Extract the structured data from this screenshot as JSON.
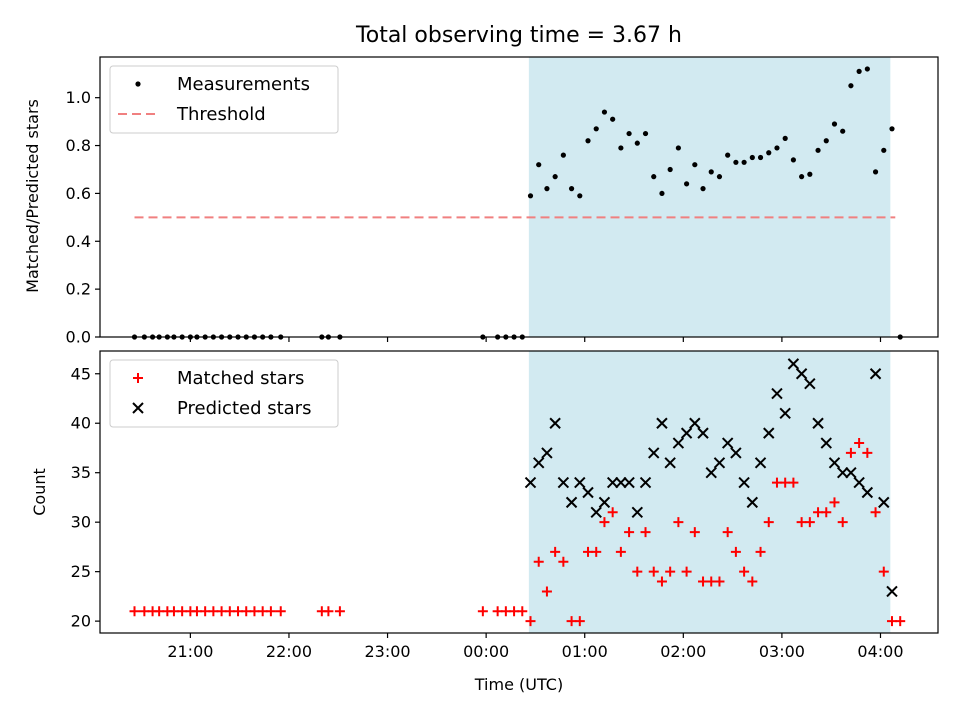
{
  "chart_data": [
    {
      "type": "scatter",
      "title": "Total observing time = 3.67 h",
      "xlabel": "",
      "ylabel": "Matched/Predicted stars",
      "xlim": [
        "20:05",
        "04:35"
      ],
      "ylim": [
        0,
        1.17
      ],
      "yticks": [
        "0.0",
        "0.2",
        "0.4",
        "0.6",
        "0.8",
        "1.0"
      ],
      "shaded_interval": [
        "00:26",
        "04:06"
      ],
      "shade_color": "#add8e6",
      "legend_position": "upper left",
      "series": [
        {
          "name": "Measurements",
          "marker": "dot",
          "color": "#000000",
          "points": [
            [
              "20:26",
              0
            ],
            [
              "20:32",
              0
            ],
            [
              "20:37",
              0
            ],
            [
              "20:41",
              0
            ],
            [
              "20:46",
              0
            ],
            [
              "20:50",
              0
            ],
            [
              "20:55",
              0
            ],
            [
              "21:00",
              0
            ],
            [
              "21:04",
              0
            ],
            [
              "21:09",
              0
            ],
            [
              "21:14",
              0
            ],
            [
              "21:19",
              0
            ],
            [
              "21:24",
              0
            ],
            [
              "21:29",
              0
            ],
            [
              "21:34",
              0
            ],
            [
              "21:39",
              0
            ],
            [
              "21:44",
              0
            ],
            [
              "21:49",
              0
            ],
            [
              "21:55",
              0
            ],
            [
              "22:20",
              0
            ],
            [
              "22:24",
              0
            ],
            [
              "22:31",
              0
            ],
            [
              "23:58",
              0
            ],
            [
              "00:07",
              0
            ],
            [
              "00:12",
              0
            ],
            [
              "00:17",
              0
            ],
            [
              "00:22",
              0
            ],
            [
              "00:27",
              0.59
            ],
            [
              "00:32",
              0.72
            ],
            [
              "00:37",
              0.62
            ],
            [
              "00:42",
              0.67
            ],
            [
              "00:47",
              0.76
            ],
            [
              "00:52",
              0.62
            ],
            [
              "00:57",
              0.59
            ],
            [
              "01:02",
              0.82
            ],
            [
              "01:07",
              0.87
            ],
            [
              "01:12",
              0.94
            ],
            [
              "01:17",
              0.91
            ],
            [
              "01:22",
              0.79
            ],
            [
              "01:27",
              0.85
            ],
            [
              "01:32",
              0.81
            ],
            [
              "01:37",
              0.85
            ],
            [
              "01:42",
              0.67
            ],
            [
              "01:47",
              0.6
            ],
            [
              "01:52",
              0.7
            ],
            [
              "01:57",
              0.79
            ],
            [
              "02:02",
              0.64
            ],
            [
              "02:07",
              0.72
            ],
            [
              "02:12",
              0.62
            ],
            [
              "02:17",
              0.69
            ],
            [
              "02:22",
              0.67
            ],
            [
              "02:27",
              0.76
            ],
            [
              "02:32",
              0.73
            ],
            [
              "02:37",
              0.73
            ],
            [
              "02:42",
              0.75
            ],
            [
              "02:47",
              0.75
            ],
            [
              "02:52",
              0.77
            ],
            [
              "02:57",
              0.79
            ],
            [
              "03:02",
              0.83
            ],
            [
              "03:07",
              0.74
            ],
            [
              "03:12",
              0.67
            ],
            [
              "03:17",
              0.68
            ],
            [
              "03:22",
              0.78
            ],
            [
              "03:27",
              0.82
            ],
            [
              "03:32",
              0.89
            ],
            [
              "03:37",
              0.86
            ],
            [
              "03:42",
              1.05
            ],
            [
              "03:47",
              1.11
            ],
            [
              "03:52",
              1.12
            ],
            [
              "03:57",
              0.69
            ],
            [
              "04:02",
              0.78
            ],
            [
              "04:07",
              0.87
            ],
            [
              "04:12",
              0
            ]
          ]
        },
        {
          "name": "Threshold",
          "type": "line",
          "style": "dashed",
          "color": "#f08080",
          "points": [
            [
              "20:26",
              0.5
            ],
            [
              "04:09",
              0.5
            ]
          ]
        }
      ]
    },
    {
      "type": "scatter",
      "title": "",
      "xlabel": "Time (UTC)",
      "ylabel": "Count",
      "xlim": [
        "20:05",
        "04:35"
      ],
      "ylim": [
        18.8,
        47.3
      ],
      "yticks": [
        "20",
        "25",
        "30",
        "35",
        "40",
        "45"
      ],
      "xticks": [
        "21:00",
        "22:00",
        "23:00",
        "00:00",
        "01:00",
        "02:00",
        "03:00",
        "04:00"
      ],
      "shaded_interval": [
        "00:26",
        "04:06"
      ],
      "shade_color": "#add8e6",
      "legend_position": "upper left",
      "series": [
        {
          "name": "Matched stars",
          "marker": "plus",
          "color": "#ff0000",
          "points": [
            [
              "20:26",
              21
            ],
            [
              "20:32",
              21
            ],
            [
              "20:37",
              21
            ],
            [
              "20:41",
              21
            ],
            [
              "20:46",
              21
            ],
            [
              "20:50",
              21
            ],
            [
              "20:55",
              21
            ],
            [
              "21:00",
              21
            ],
            [
              "21:04",
              21
            ],
            [
              "21:09",
              21
            ],
            [
              "21:14",
              21
            ],
            [
              "21:19",
              21
            ],
            [
              "21:24",
              21
            ],
            [
              "21:29",
              21
            ],
            [
              "21:34",
              21
            ],
            [
              "21:39",
              21
            ],
            [
              "21:44",
              21
            ],
            [
              "21:49",
              21
            ],
            [
              "21:55",
              21
            ],
            [
              "22:20",
              21
            ],
            [
              "22:24",
              21
            ],
            [
              "22:31",
              21
            ],
            [
              "23:58",
              21
            ],
            [
              "00:07",
              21
            ],
            [
              "00:12",
              21
            ],
            [
              "00:17",
              21
            ],
            [
              "00:22",
              21
            ],
            [
              "00:27",
              20
            ],
            [
              "00:32",
              26
            ],
            [
              "00:37",
              23
            ],
            [
              "00:42",
              27
            ],
            [
              "00:47",
              26
            ],
            [
              "00:52",
              20
            ],
            [
              "00:57",
              20
            ],
            [
              "01:02",
              27
            ],
            [
              "01:07",
              27
            ],
            [
              "01:12",
              30
            ],
            [
              "01:17",
              31
            ],
            [
              "01:22",
              27
            ],
            [
              "01:27",
              29
            ],
            [
              "01:32",
              25
            ],
            [
              "01:37",
              29
            ],
            [
              "01:42",
              25
            ],
            [
              "01:47",
              24
            ],
            [
              "01:52",
              25
            ],
            [
              "01:57",
              30
            ],
            [
              "02:02",
              25
            ],
            [
              "02:07",
              29
            ],
            [
              "02:12",
              24
            ],
            [
              "02:17",
              24
            ],
            [
              "02:22",
              24
            ],
            [
              "02:27",
              29
            ],
            [
              "02:32",
              27
            ],
            [
              "02:37",
              25
            ],
            [
              "02:42",
              24
            ],
            [
              "02:47",
              27
            ],
            [
              "02:52",
              30
            ],
            [
              "02:57",
              34
            ],
            [
              "03:02",
              34
            ],
            [
              "03:07",
              34
            ],
            [
              "03:12",
              30
            ],
            [
              "03:17",
              30
            ],
            [
              "03:22",
              31
            ],
            [
              "03:27",
              31
            ],
            [
              "03:32",
              32
            ],
            [
              "03:37",
              30
            ],
            [
              "03:42",
              37
            ],
            [
              "03:47",
              38
            ],
            [
              "03:52",
              37
            ],
            [
              "03:57",
              31
            ],
            [
              "04:02",
              25
            ],
            [
              "04:07",
              20
            ],
            [
              "04:12",
              20
            ]
          ]
        },
        {
          "name": "Predicted stars",
          "marker": "x",
          "color": "#000000",
          "points": [
            [
              "00:27",
              34
            ],
            [
              "00:32",
              36
            ],
            [
              "00:37",
              37
            ],
            [
              "00:42",
              40
            ],
            [
              "00:47",
              34
            ],
            [
              "00:52",
              32
            ],
            [
              "00:57",
              34
            ],
            [
              "01:02",
              33
            ],
            [
              "01:07",
              31
            ],
            [
              "01:12",
              32
            ],
            [
              "01:17",
              34
            ],
            [
              "01:22",
              34
            ],
            [
              "01:27",
              34
            ],
            [
              "01:32",
              31
            ],
            [
              "01:37",
              34
            ],
            [
              "01:42",
              37
            ],
            [
              "01:47",
              40
            ],
            [
              "01:52",
              36
            ],
            [
              "01:57",
              38
            ],
            [
              "02:02",
              39
            ],
            [
              "02:07",
              40
            ],
            [
              "02:12",
              39
            ],
            [
              "02:17",
              35
            ],
            [
              "02:22",
              36
            ],
            [
              "02:27",
              38
            ],
            [
              "02:32",
              37
            ],
            [
              "02:37",
              34
            ],
            [
              "02:42",
              32
            ],
            [
              "02:47",
              36
            ],
            [
              "02:52",
              39
            ],
            [
              "02:57",
              43
            ],
            [
              "03:02",
              41
            ],
            [
              "03:07",
              46
            ],
            [
              "03:12",
              45
            ],
            [
              "03:17",
              44
            ],
            [
              "03:22",
              40
            ],
            [
              "03:27",
              38
            ],
            [
              "03:32",
              36
            ],
            [
              "03:37",
              35
            ],
            [
              "03:42",
              35
            ],
            [
              "03:47",
              34
            ],
            [
              "03:52",
              33
            ],
            [
              "03:57",
              45
            ],
            [
              "04:02",
              32
            ],
            [
              "04:07",
              23
            ]
          ]
        }
      ]
    }
  ]
}
